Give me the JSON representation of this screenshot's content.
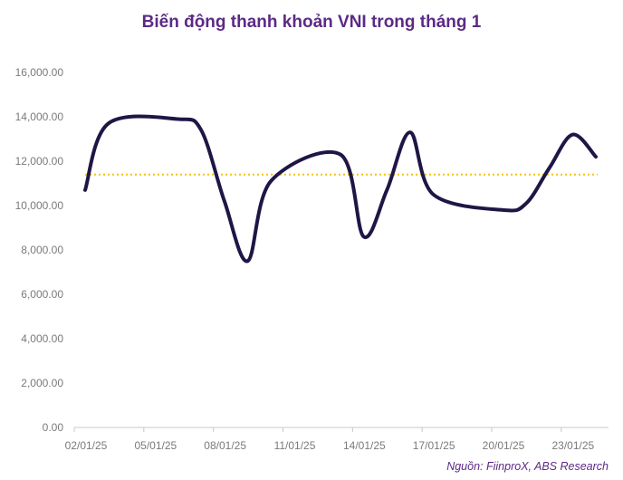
{
  "chart_data": {
    "type": "line",
    "title": "Biến động thanh khoản VNI trong tháng 1",
    "xlabel": "",
    "ylabel": "",
    "ylim": [
      0,
      16000
    ],
    "yticks": [
      "0.00",
      "2,000.00",
      "4,000.00",
      "6,000.00",
      "8,000.00",
      "10,000.00",
      "12,000.00",
      "14,000.00",
      "16,000.00"
    ],
    "x": [
      "02/01/25",
      "03/01/25",
      "06/01/25",
      "07/01/25",
      "08/01/25",
      "09/01/25",
      "10/01/25",
      "13/01/25",
      "14/01/25",
      "15/01/25",
      "16/01/25",
      "17/01/25",
      "20/01/25",
      "21/01/25",
      "22/01/25",
      "23/01/25",
      "24/01/25"
    ],
    "x_tick_labels": [
      "02/01/25",
      "05/01/25",
      "08/01/25",
      "11/01/25",
      "14/01/25",
      "17/01/25",
      "20/01/25",
      "23/01/25"
    ],
    "series": [
      {
        "values": [
          10700,
          13700,
          13900,
          13400,
          10200,
          7500,
          11100,
          12300,
          8600,
          10700,
          13300,
          10500,
          9800,
          10100,
          11700,
          13200,
          12200
        ],
        "color": "#1f1646"
      }
    ],
    "average_line": {
      "value": 11400,
      "color": "#f2c40f",
      "style": "dotted"
    },
    "grid": false,
    "legend": "none",
    "source": "Nguồn: FiinproX, ABS Research"
  }
}
